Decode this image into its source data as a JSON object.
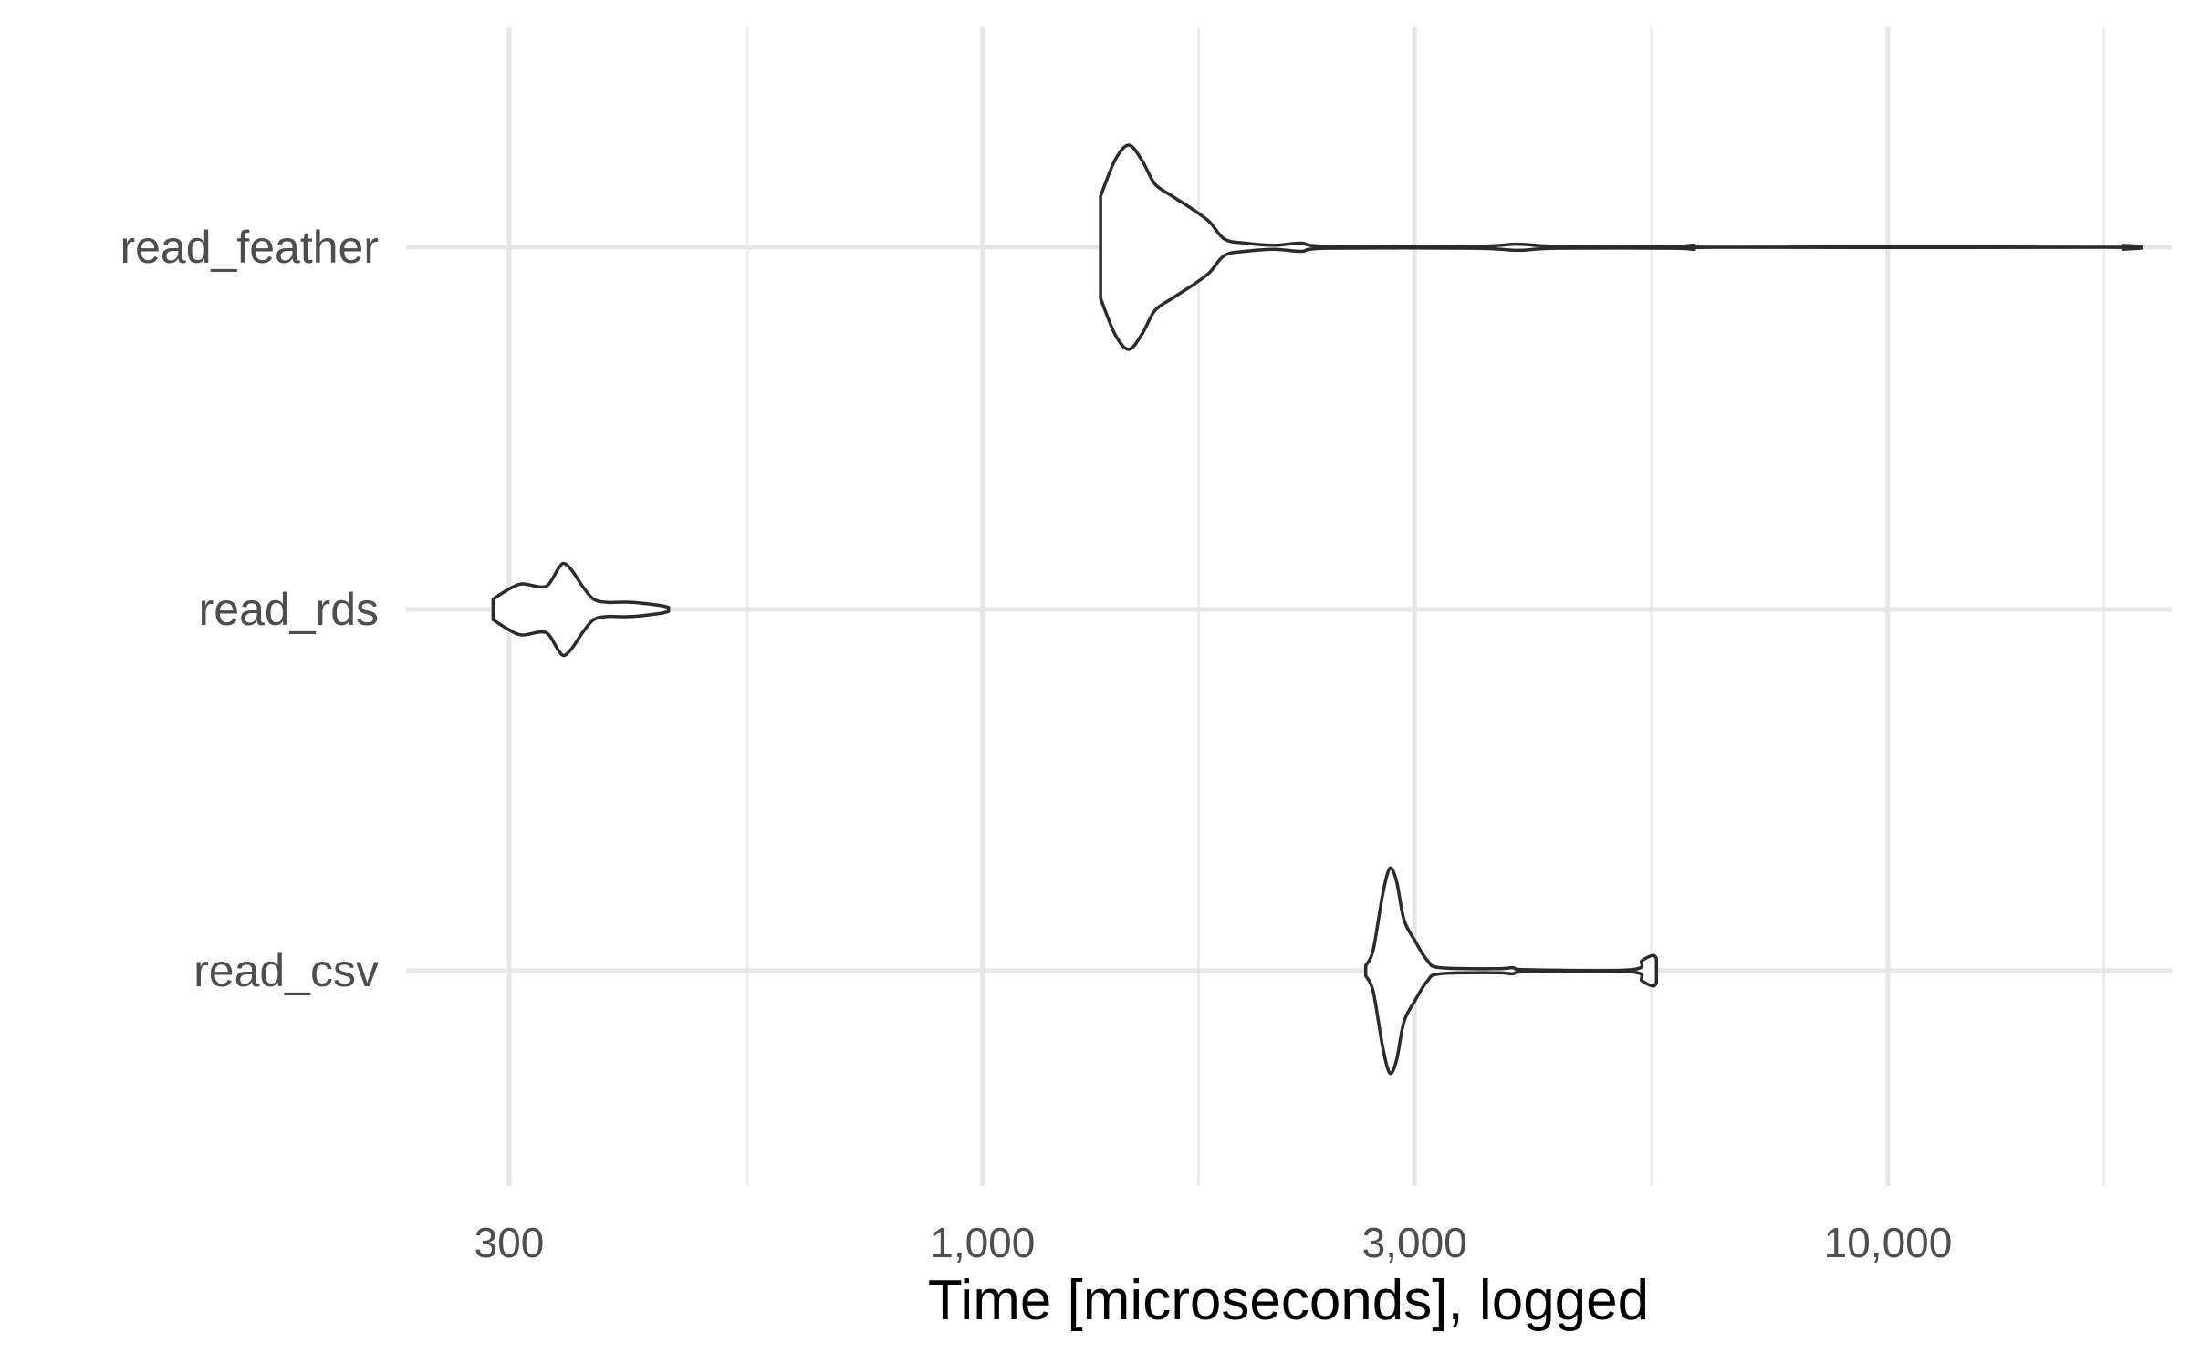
{
  "chart_data": {
    "type": "violin",
    "title": "",
    "xlabel": "Time [microseconds], logged",
    "ylabel": "",
    "x_scale": "log10",
    "xlim": [
      260,
      19500
    ],
    "x_major_ticks": [
      300,
      1000,
      3000,
      10000
    ],
    "x_tick_labels": [
      "300",
      "1,000",
      "3,000",
      "10,000"
    ],
    "x_minor_ticks": [
      550,
      1732,
      5477,
      17320
    ],
    "grid": true,
    "legend": "none",
    "categories": [
      "read_feather",
      "read_rds",
      "read_csv"
    ],
    "series": [
      {
        "category": "read_feather",
        "range": [
          1350,
          18200
        ],
        "density": [
          [
            1350,
            0.5
          ],
          [
            1400,
            0.85
          ],
          [
            1450,
            1.0
          ],
          [
            1500,
            0.85
          ],
          [
            1550,
            0.62
          ],
          [
            1620,
            0.5
          ],
          [
            1700,
            0.38
          ],
          [
            1780,
            0.25
          ],
          [
            1850,
            0.08
          ],
          [
            1950,
            0.04
          ],
          [
            2100,
            0.02
          ],
          [
            2250,
            0.04
          ],
          [
            2400,
            0.01
          ],
          [
            3500,
            0.01
          ],
          [
            3900,
            0.03
          ],
          [
            4300,
            0.01
          ],
          [
            5800,
            0.01
          ],
          [
            6100,
            0.02
          ],
          [
            6500,
            0.0
          ],
          [
            17500,
            0.0
          ],
          [
            18200,
            0.02
          ]
        ]
      },
      {
        "category": "read_rds",
        "range": [
          288,
          450
        ],
        "density": [
          [
            288,
            0.1
          ],
          [
            300,
            0.2
          ],
          [
            310,
            0.25
          ],
          [
            325,
            0.22
          ],
          [
            332,
            0.25
          ],
          [
            340,
            0.4
          ],
          [
            345,
            0.45
          ],
          [
            352,
            0.38
          ],
          [
            362,
            0.22
          ],
          [
            372,
            0.1
          ],
          [
            385,
            0.07
          ],
          [
            410,
            0.07
          ],
          [
            440,
            0.04
          ],
          [
            450,
            0.02
          ]
        ]
      },
      {
        "category": "read_csv",
        "range": [
          2650,
          5550
        ],
        "density": [
          [
            2650,
            0.05
          ],
          [
            2700,
            0.2
          ],
          [
            2760,
            0.7
          ],
          [
            2800,
            0.95
          ],
          [
            2830,
            1.0
          ],
          [
            2870,
            0.85
          ],
          [
            2920,
            0.5
          ],
          [
            3000,
            0.3
          ],
          [
            3100,
            0.1
          ],
          [
            3200,
            0.03
          ],
          [
            3700,
            0.02
          ],
          [
            3850,
            0.03
          ],
          [
            4000,
            0.01
          ],
          [
            5200,
            0.01
          ],
          [
            5350,
            0.1
          ],
          [
            5500,
            0.15
          ],
          [
            5550,
            0.12
          ]
        ]
      }
    ]
  }
}
